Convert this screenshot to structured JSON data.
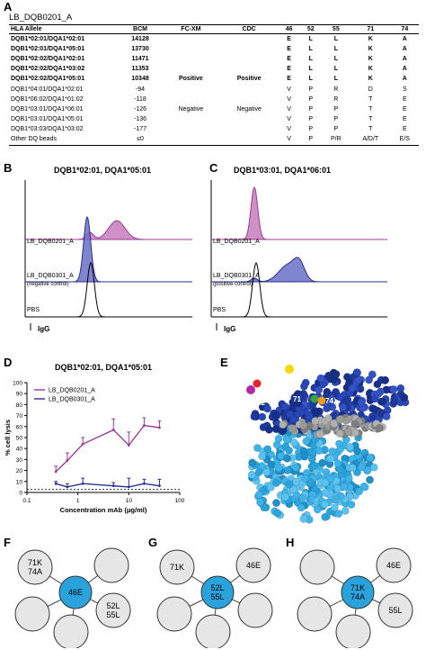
{
  "panels": {
    "A": "A",
    "B": "B",
    "C": "C",
    "D": "D",
    "E": "E",
    "F": "F",
    "G": "G",
    "H": "H"
  },
  "table": {
    "title": "LB_DQB0201_A",
    "headers": [
      "HLA Allele",
      "BCM",
      "FC-XM",
      "CDC",
      "46",
      "52",
      "55",
      "71",
      "74"
    ],
    "rows": [
      {
        "bold": true,
        "cells": [
          "DQB1*02:01/DQA1*02:01",
          "14128",
          "",
          "",
          "E",
          "L",
          "L",
          "K",
          "A"
        ]
      },
      {
        "bold": true,
        "cells": [
          "DQB1*02:01/DQA1*05:01",
          "13730",
          "",
          "",
          "E",
          "L",
          "L",
          "K",
          "A"
        ]
      },
      {
        "bold": true,
        "cells": [
          "DQB1*02:02/DQA1*02:01",
          "11471",
          "",
          "",
          "E",
          "L",
          "L",
          "K",
          "A"
        ]
      },
      {
        "bold": true,
        "cells": [
          "DQB1*02:02/DQA1*03:02",
          "11353",
          "",
          "",
          "E",
          "L",
          "L",
          "K",
          "A"
        ]
      },
      {
        "bold": true,
        "cells": [
          "DQB1*02:02/DQA1*05:01",
          "10348",
          "Positive",
          "Positive",
          "E",
          "L",
          "L",
          "K",
          "A"
        ]
      },
      {
        "bold": false,
        "cells": [
          "DQB1*04:01/DQA1*02:01",
          "-94",
          "",
          "",
          "V",
          "P",
          "R",
          "D",
          "S"
        ]
      },
      {
        "bold": false,
        "cells": [
          "DQB1*06:02/DQA1*01:02",
          "-118",
          "",
          "",
          "V",
          "P",
          "R",
          "T",
          "E"
        ]
      },
      {
        "bold": false,
        "cells": [
          "DQB1*03:01/DQA1*06:01",
          "-126",
          "Negative",
          "Negative",
          "V",
          "P",
          "P",
          "T",
          "E"
        ]
      },
      {
        "bold": false,
        "cells": [
          "DQB1*03:01/DQA1*05:01",
          "-136",
          "",
          "",
          "V",
          "P",
          "P",
          "T",
          "E"
        ]
      },
      {
        "bold": false,
        "cells": [
          "DQB1*03:03/DQA1*03:02",
          "-177",
          "",
          "",
          "V",
          "P",
          "P",
          "T",
          "E"
        ]
      },
      {
        "bold": false,
        "cells": [
          "Other DQ beads",
          "≤0",
          "",
          "",
          "V",
          "P",
          "P/R",
          "A/D/T",
          "E/S"
        ]
      }
    ]
  },
  "flowB": {
    "title": "DQB1*02:01, DQA1*05:01",
    "labels": [
      "LB_DQB0201_A",
      "LB_DQB0301_A",
      "(negative control)",
      "PBS"
    ],
    "xlabel": "IgG"
  },
  "flowC": {
    "title": "DQB1*03:01, DQA1*06:01",
    "labels": [
      "LB_DQB0201_A",
      "LB_DQB0301_A",
      "(positive control)",
      "PBS"
    ],
    "xlabel": "IgG"
  },
  "chart_data": {
    "type": "line",
    "title": "DQB1*02:01, DQA1*05:01",
    "xlabel": "Concentration mAb (μg/ml)",
    "ylabel": "% cell lysis",
    "xscale": "log",
    "xlim": [
      0.1,
      100
    ],
    "ylim": [
      0,
      100
    ],
    "xticks": [
      "0.1",
      "1",
      "10",
      "100"
    ],
    "yticks": [
      "0",
      "10",
      "20",
      "30",
      "40",
      "50",
      "60",
      "70",
      "80",
      "90",
      "100"
    ],
    "legend_position": "top-left",
    "series": [
      {
        "name": "LB_DQB0201_A",
        "color": "#a0389a",
        "x": [
          0.37,
          0.62,
          1.25,
          5,
          10,
          20,
          40
        ],
        "y": [
          19,
          29,
          44,
          57,
          43,
          61,
          59
        ],
        "err": [
          5,
          7,
          6,
          10,
          12,
          7,
          6
        ]
      },
      {
        "name": "LB_DQB0301_A",
        "color": "#27308f",
        "x": [
          0.37,
          0.62,
          1.25,
          5,
          10,
          20,
          40
        ],
        "y": [
          8,
          5,
          8,
          6,
          5,
          8,
          6
        ],
        "err": [
          2,
          3,
          5,
          3,
          8,
          4,
          6
        ]
      }
    ],
    "baseline": 3
  },
  "structure": {
    "labels": [
      "46",
      "52",
      "55",
      "71",
      "74"
    ]
  },
  "networks": {
    "F": {
      "center": "46E",
      "sat1": "71K\n74A",
      "sat2": "52L\n55L"
    },
    "G": {
      "center": "52L\n55L",
      "sat1": "71K",
      "sat2": "46E"
    },
    "H": {
      "center": "71K\n74A",
      "sat1": "46E",
      "sat2": "55L"
    }
  },
  "colors": {
    "pink": "#c77dbb",
    "purple": "#a0389a",
    "blue": "#6a70c7",
    "navy": "#27308f",
    "cyan": "#2aa3dc"
  }
}
